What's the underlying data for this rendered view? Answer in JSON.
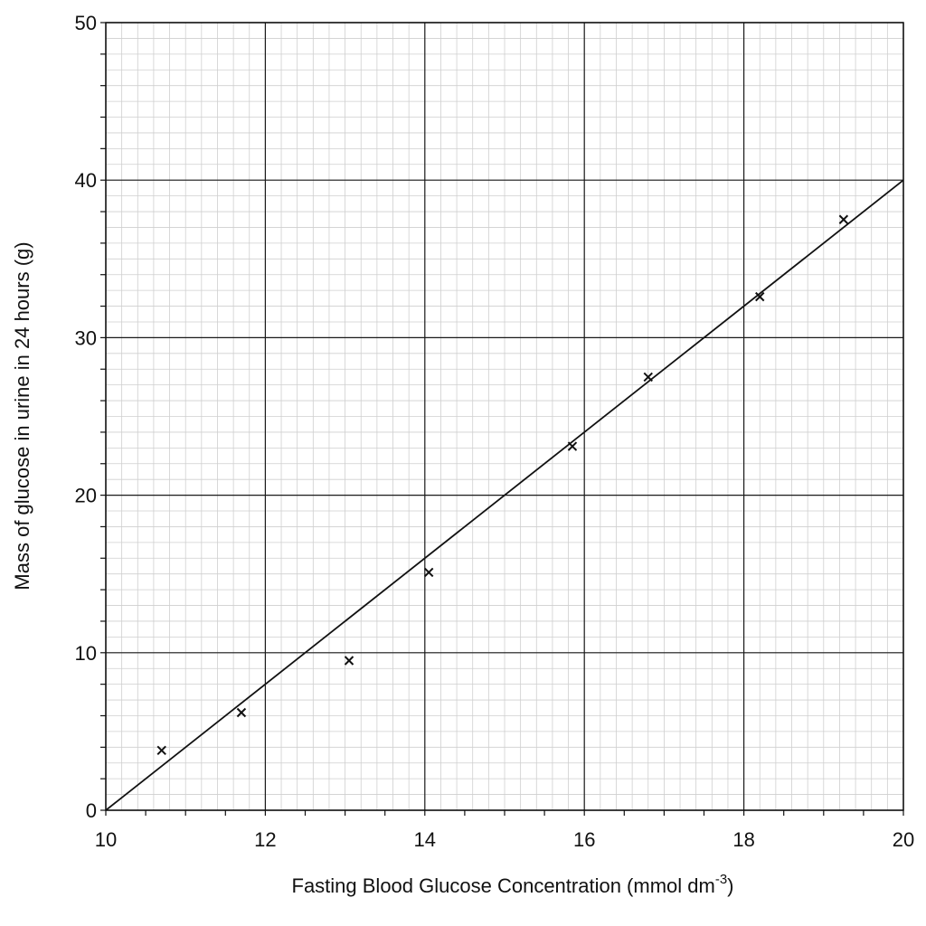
{
  "chart_data": {
    "type": "scatter",
    "title": "",
    "xlabel": "Fasting Blood Glucose Concentration (mmol dm",
    "xlabel_sup": "-3",
    "xlabel_suffix": ")",
    "ylabel": "Mass of glucose in urine in 24 hours (g)",
    "xlim": [
      10,
      20
    ],
    "ylim": [
      0,
      50
    ],
    "x_ticks": [
      10,
      12,
      14,
      16,
      18,
      20
    ],
    "y_ticks": [
      0,
      10,
      20,
      30,
      40,
      50
    ],
    "x_minor_step": 0.2,
    "y_minor_step": 1,
    "grid": true,
    "marker": "x",
    "series": [
      {
        "x": [
          10.7,
          11.7,
          13.05,
          14.05,
          15.85,
          16.8,
          18.2,
          19.25
        ],
        "y": [
          3.8,
          6.2,
          9.5,
          15.1,
          23.1,
          27.5,
          32.6,
          37.5
        ]
      }
    ],
    "best_fit_line": {
      "x": [
        10,
        20
      ],
      "y": [
        0,
        40
      ]
    },
    "colors": {
      "background": "#ffffff",
      "major_grid": "#1a1a1a",
      "minor_grid": "#cfcfcf",
      "ink": "#111111"
    }
  }
}
